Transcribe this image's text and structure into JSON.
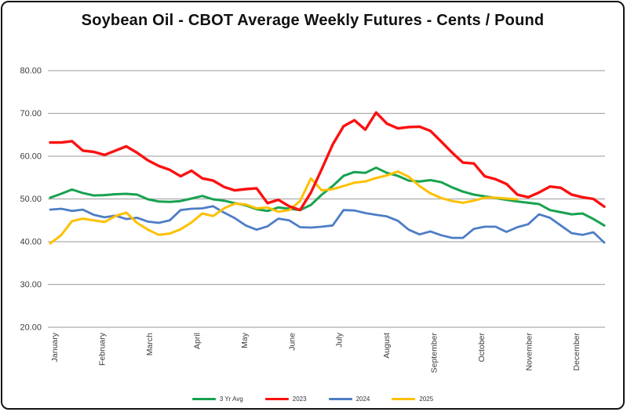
{
  "title": "Soybean Oil - CBOT Average Weekly Futures - Cents / Pound",
  "legend": [
    {
      "label": "3 Yr Avg",
      "color": "#17A24F"
    },
    {
      "label": "2023",
      "color": "#FB1111"
    },
    {
      "label": "2024",
      "color": "#4E7DC5"
    },
    {
      "label": "2025",
      "color": "#FFC000"
    }
  ],
  "y_tick_labels": [
    "80.00",
    "70.00",
    "60.00",
    "50.00",
    "40.00",
    "30.00",
    "20.00"
  ],
  "chart_data": {
    "type": "line",
    "title": "Soybean Oil - CBOT Average Weekly Futures - Cents / Pound",
    "xlabel": "",
    "ylabel": "",
    "x_categories": [
      "January",
      "February",
      "March",
      "April",
      "May",
      "June",
      "July",
      "August",
      "September",
      "October",
      "November",
      "December"
    ],
    "x_unit": "week",
    "ylim": [
      20,
      80
    ],
    "y_step": 10,
    "grid": true,
    "legend_position": "bottom",
    "series": [
      {
        "name": "3 Yr Avg",
        "color": "#17A24F",
        "values": [
          50.3,
          51.2,
          52.2,
          51.4,
          50.8,
          50.9,
          51.1,
          51.2,
          51.0,
          49.9,
          49.4,
          49.3,
          49.5,
          50.1,
          50.7,
          49.9,
          49.6,
          49.0,
          48.5,
          47.6,
          47.2,
          48.0,
          47.7,
          47.4,
          48.6,
          51.0,
          53.0,
          55.4,
          56.3,
          56.1,
          57.3,
          56.1,
          55.4,
          54.3,
          54.1,
          54.4,
          53.9,
          52.7,
          51.7,
          51.0,
          50.6,
          50.2,
          49.8,
          49.4,
          49.1,
          48.8,
          47.4,
          46.9,
          46.4,
          46.6,
          45.3,
          43.8
        ]
      },
      {
        "name": "2023",
        "color": "#FB1111",
        "values": [
          63.2,
          63.2,
          63.5,
          61.3,
          61.0,
          60.3,
          61.3,
          62.3,
          60.8,
          59.0,
          57.7,
          56.8,
          55.3,
          56.6,
          54.8,
          54.3,
          52.8,
          52.0,
          52.3,
          52.5,
          49.0,
          49.8,
          48.3,
          47.4,
          51.5,
          57.0,
          62.7,
          67.0,
          68.4,
          66.2,
          70.2,
          67.6,
          66.5,
          66.8,
          66.9,
          65.9,
          63.4,
          60.8,
          58.5,
          58.3,
          55.3,
          54.6,
          53.5,
          51.0,
          50.4,
          51.5,
          52.9,
          52.6,
          51.0,
          50.4,
          50.0,
          48.2
        ]
      },
      {
        "name": "2024",
        "color": "#4E7DC5",
        "values": [
          47.5,
          47.7,
          47.2,
          47.5,
          46.3,
          45.7,
          46.1,
          45.3,
          45.6,
          44.7,
          44.4,
          45.0,
          47.4,
          47.7,
          47.8,
          48.3,
          46.8,
          45.5,
          43.8,
          42.8,
          43.6,
          45.4,
          45.0,
          43.4,
          43.3,
          43.5,
          43.8,
          47.4,
          47.3,
          46.7,
          46.3,
          45.9,
          44.9,
          42.8,
          41.7,
          42.4,
          41.5,
          40.9,
          40.9,
          43.0,
          43.5,
          43.5,
          42.3,
          43.4,
          44.1,
          46.4,
          45.6,
          43.8,
          42.0,
          41.6,
          42.2,
          39.8
        ]
      },
      {
        "name": "2025",
        "color": "#FFC000",
        "values": [
          39.6,
          41.5,
          44.8,
          45.4,
          45.0,
          44.6,
          46.0,
          46.8,
          44.4,
          42.8,
          41.6,
          41.9,
          42.9,
          44.5,
          46.6,
          46.0,
          47.8,
          48.9,
          48.7,
          47.8,
          48.0,
          47.0,
          47.4,
          49.5,
          54.8,
          52.0,
          52.3,
          53.0,
          53.8,
          54.1,
          54.9,
          55.5,
          56.4,
          55.2,
          53.0,
          51.3,
          50.2,
          49.5,
          49.1,
          49.6,
          50.3,
          50.3,
          50.1,
          49.9
        ]
      }
    ],
    "notes": "52 weekly points per full-year series; 2025 series ends in late October (44 weeks). Values in cents per pound."
  }
}
